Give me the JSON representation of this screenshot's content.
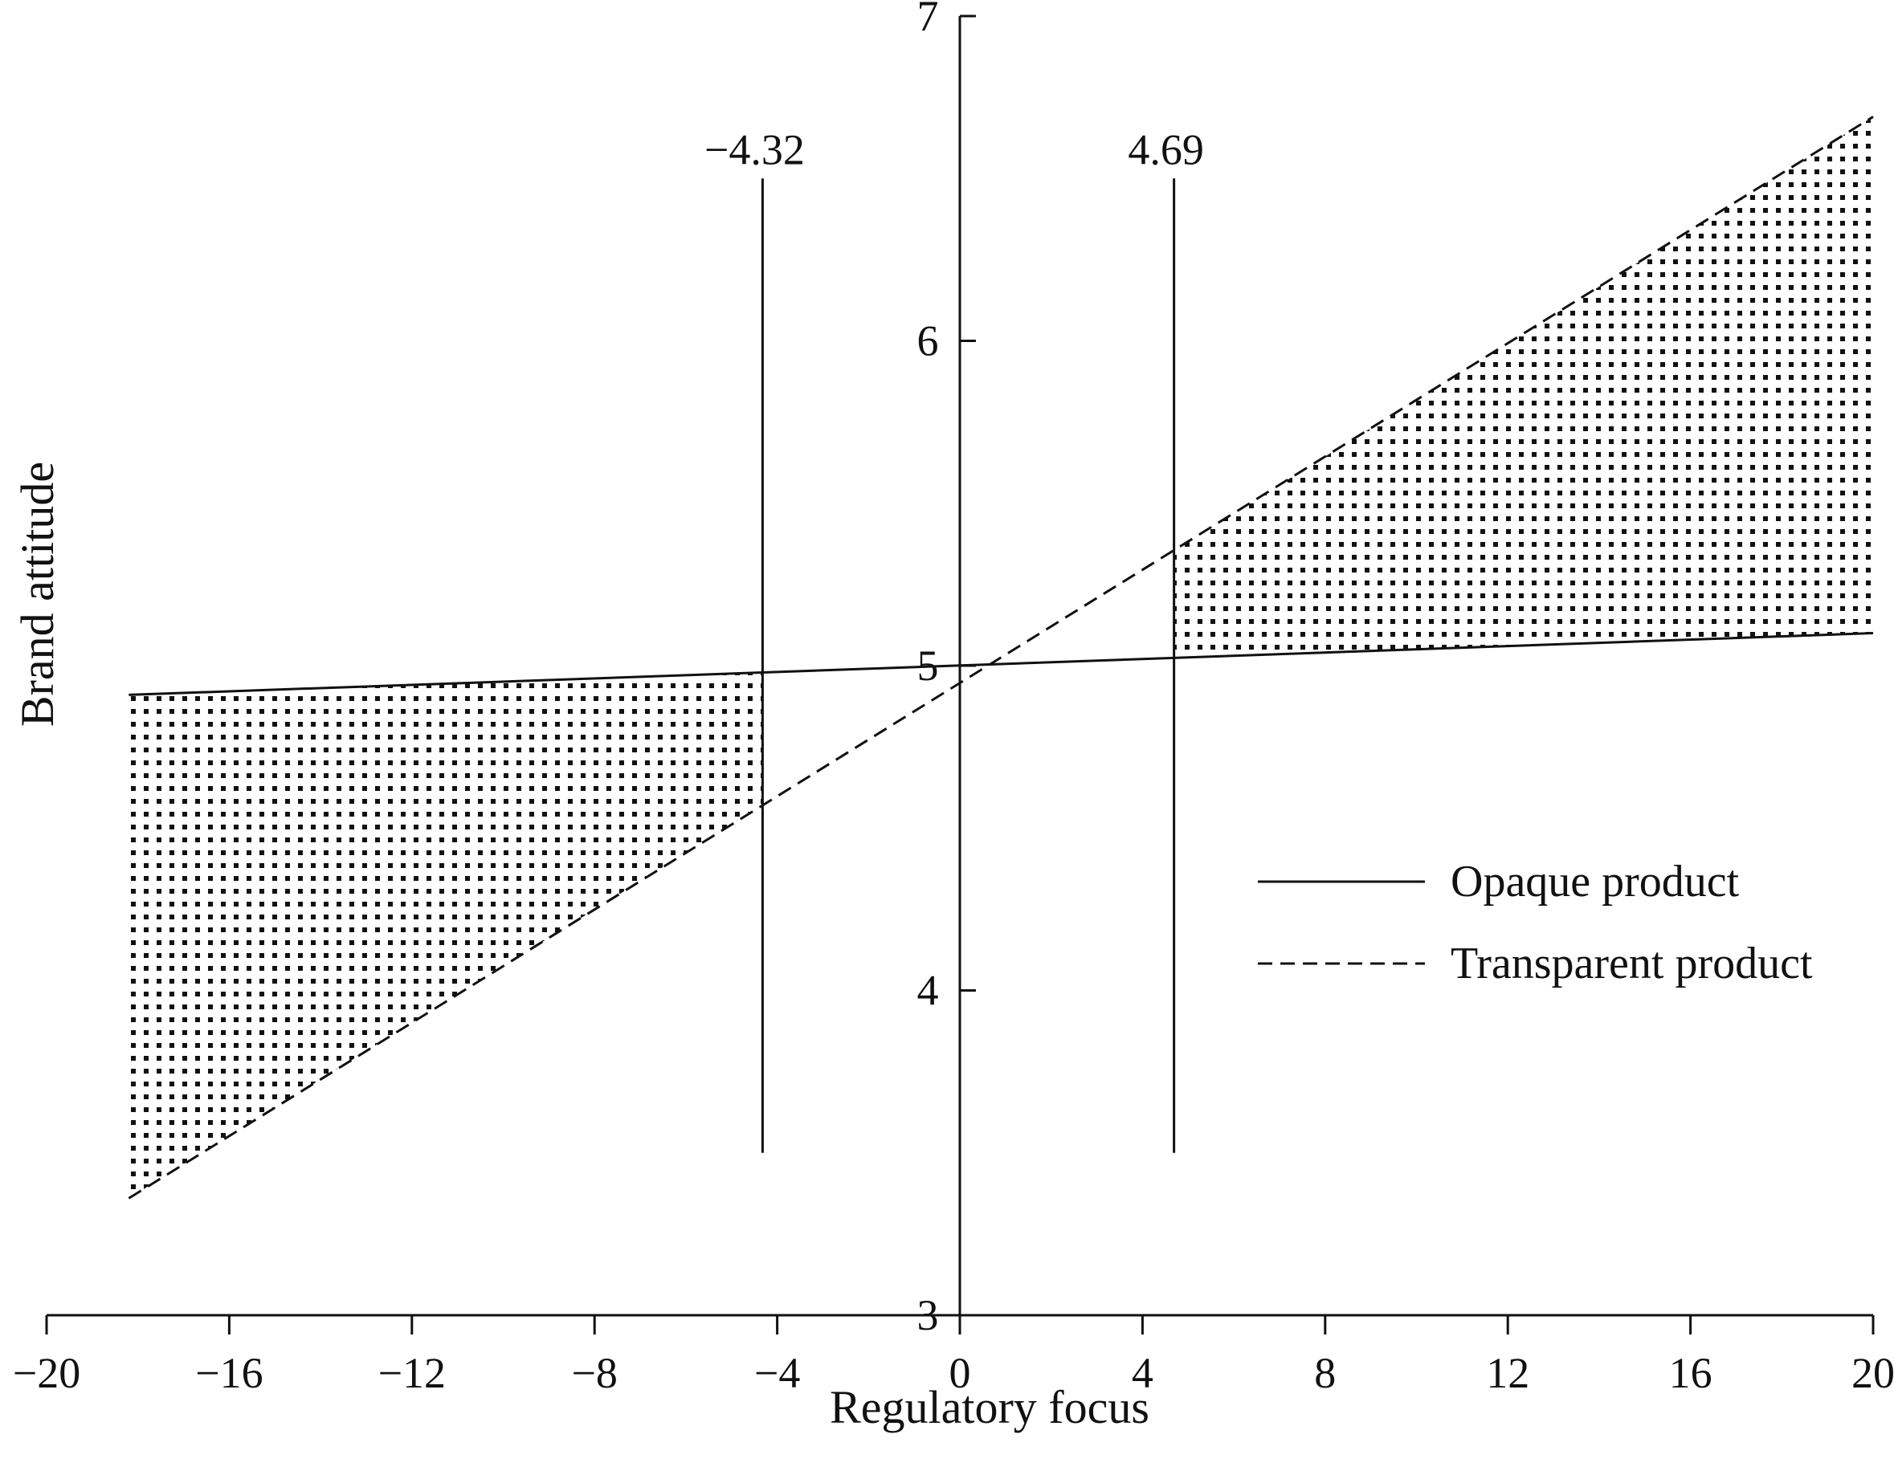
{
  "chart_data": {
    "type": "line",
    "title": "",
    "xlabel": "Regulatory focus",
    "ylabel": "Brand attitude",
    "xlim": [
      -20,
      20
    ],
    "ylim": [
      3,
      7
    ],
    "x_ticks": [
      -20,
      -16,
      -12,
      -8,
      -4,
      0,
      4,
      8,
      12,
      16,
      20
    ],
    "x_tick_labels": [
      "−20",
      "−16",
      "−12",
      "−8",
      "−4",
      "0",
      "4",
      "8",
      "12",
      "16",
      "20"
    ],
    "y_ticks": [
      3,
      4,
      5,
      6,
      7
    ],
    "y_tick_labels": [
      "3",
      "4",
      "5",
      "6",
      "7"
    ],
    "grid": false,
    "legend_position": "right",
    "series": [
      {
        "name": "Opaque product",
        "style": "solid",
        "color": "#111111",
        "x": [
          -18.2,
          20
        ],
        "y": [
          4.91,
          5.1
        ]
      },
      {
        "name": "Transparent product",
        "style": "dashed",
        "color": "#111111",
        "x": [
          -18.2,
          20
        ],
        "y": [
          3.36,
          6.69
        ]
      }
    ],
    "reference_lines": [
      {
        "x": -4.32,
        "label": "−4.32",
        "y_range": [
          3.5,
          6.5
        ]
      },
      {
        "x": 4.69,
        "label": "4.69",
        "y_range": [
          3.5,
          6.5
        ]
      }
    ],
    "shaded_regions": [
      {
        "x_range": [
          -18.2,
          -4.32
        ],
        "between": [
          "Opaque product",
          "Transparent product"
        ],
        "pattern": "dots"
      },
      {
        "x_range": [
          4.69,
          20
        ],
        "between": [
          "Opaque product",
          "Transparent product"
        ],
        "pattern": "dots"
      }
    ]
  }
}
